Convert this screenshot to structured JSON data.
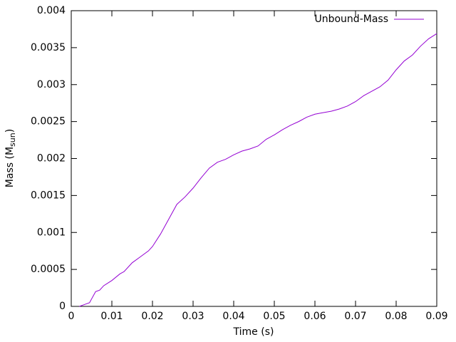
{
  "chart_data": {
    "type": "line",
    "x_label": "Time (s)",
    "y_label": {
      "main": "Mass (M",
      "sub": "sun",
      "end": ")"
    },
    "x": [
      0.002,
      0.003,
      0.0045,
      0.006,
      0.007,
      0.008,
      0.01,
      0.012,
      0.013,
      0.015,
      0.017,
      0.019,
      0.02,
      0.022,
      0.024,
      0.026,
      0.028,
      0.03,
      0.032,
      0.034,
      0.036,
      0.038,
      0.04,
      0.042,
      0.044,
      0.046,
      0.048,
      0.05,
      0.052,
      0.054,
      0.056,
      0.058,
      0.06,
      0.062,
      0.064,
      0.066,
      0.068,
      0.07,
      0.072,
      0.074,
      0.076,
      0.078,
      0.08,
      0.082,
      0.084,
      0.086,
      0.088,
      0.09
    ],
    "series": [
      {
        "name": "Unbound-Mass",
        "color": "#9400d3",
        "values": [
          0,
          2e-05,
          5e-05,
          0.0002,
          0.00022,
          0.00028,
          0.00035,
          0.00044,
          0.00047,
          0.00059,
          0.00067,
          0.00075,
          0.00081,
          0.00098,
          0.00118,
          0.00138,
          0.00148,
          0.0016,
          0.00174,
          0.00187,
          0.00195,
          0.00199,
          0.00205,
          0.0021,
          0.00213,
          0.00217,
          0.00226,
          0.00232,
          0.00239,
          0.00245,
          0.0025,
          0.00256,
          0.0026,
          0.00262,
          0.00264,
          0.00267,
          0.00271,
          0.00277,
          0.00285,
          0.00291,
          0.00297,
          0.00306,
          0.0032,
          0.00332,
          0.0034,
          0.00352,
          0.00362,
          0.00369
        ]
      }
    ],
    "xlim": [
      0,
      0.09
    ],
    "xticks": [
      0,
      0.01,
      0.02,
      0.03,
      0.04,
      0.05,
      0.06,
      0.07,
      0.08,
      0.09
    ],
    "ylim": [
      0,
      0.004
    ],
    "yticks": [
      0,
      0.0005,
      0.001,
      0.0015,
      0.002,
      0.0025,
      0.003,
      0.0035,
      0.004
    ],
    "legend": "top-right"
  }
}
